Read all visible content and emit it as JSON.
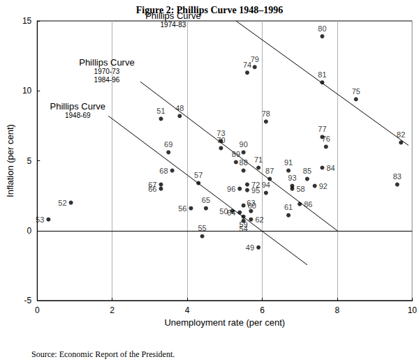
{
  "chart_data": {
    "type": "scatter",
    "title": "Figure 2: Phillips Curve 1948–1996",
    "x_label": "Unemployment rate (per cent)",
    "y_label": "Inflation (per cent)",
    "source": "Source: Economic Report of the President.",
    "color": "#000000",
    "marker": "circle",
    "x": [
      3.8,
      5.9,
      5.2,
      3.3,
      0.9,
      0.3,
      5.5,
      4.4,
      4.1,
      4.3,
      6.8,
      5.5,
      5.5,
      6.7,
      5.7,
      5.7,
      5.4,
      4.5,
      3.3,
      3.3,
      3.6,
      3.5,
      4.9,
      5.9,
      5.6,
      4.9,
      5.6,
      8.5,
      7.7,
      7.6,
      6.1,
      5.8,
      7.6,
      7.6,
      9.7,
      9.6,
      7.6,
      7.2,
      7.0,
      6.2,
      5.5,
      5.3,
      5.5,
      6.7,
      7.4,
      6.8,
      6.1,
      5.6,
      5.4
    ],
    "y": [
      8.2,
      -1.2,
      1.4,
      8.0,
      2.0,
      0.8,
      0.7,
      -0.4,
      1.6,
      3.4,
      3.0,
      1.0,
      1.8,
      1.1,
      0.8,
      1.4,
      1.3,
      1.6,
      3.0,
      3.3,
      4.3,
      5.6,
      5.9,
      4.5,
      3.3,
      6.4,
      11.3,
      9.4,
      6.0,
      6.7,
      7.8,
      11.7,
      13.9,
      10.6,
      6.3,
      3.3,
      4.5,
      3.7,
      1.9,
      3.7,
      4.3,
      4.9,
      5.6,
      4.3,
      3.2,
      3.2,
      2.7,
      2.9,
      3.0
    ],
    "point_labels": [
      "48",
      "49",
      "50",
      "51",
      "52",
      "53",
      "54",
      "55",
      "56",
      "57",
      "58",
      "59",
      "60",
      "61",
      "62",
      "63",
      "64",
      "65",
      "66",
      "67",
      "68",
      "69",
      "70",
      "71",
      "72",
      "73",
      "74",
      "75",
      "76",
      "77",
      "78",
      "79",
      "80",
      "81",
      "82",
      "83",
      "84",
      "85",
      "86",
      "87",
      "88",
      "89",
      "90",
      "91",
      "92",
      "93",
      "94",
      "95",
      "96"
    ],
    "lines": [
      {
        "label": [
          "Phillips Curve",
          "1948-69"
        ],
        "x": [
          1.9,
          7.2
        ],
        "y": [
          8.2,
          -2.45
        ]
      },
      {
        "label": [
          "Phillips Curve",
          "1970-73",
          "1984-96"
        ],
        "x": [
          2.75,
          8.0
        ],
        "y": [
          10.65,
          0
        ]
      },
      {
        "label": [
          "Phillips Curve",
          "1974-83"
        ],
        "x": [
          5.3,
          9.9
        ],
        "y": [
          15,
          6.1
        ]
      }
    ],
    "hlines": [
      0
    ],
    "xlim": [
      0,
      10
    ],
    "xticks": [
      0,
      2,
      4,
      6,
      8,
      10
    ],
    "ylim": [
      -5,
      15
    ],
    "yticks": [
      -5,
      0,
      5,
      10,
      15
    ],
    "grid": "x"
  }
}
